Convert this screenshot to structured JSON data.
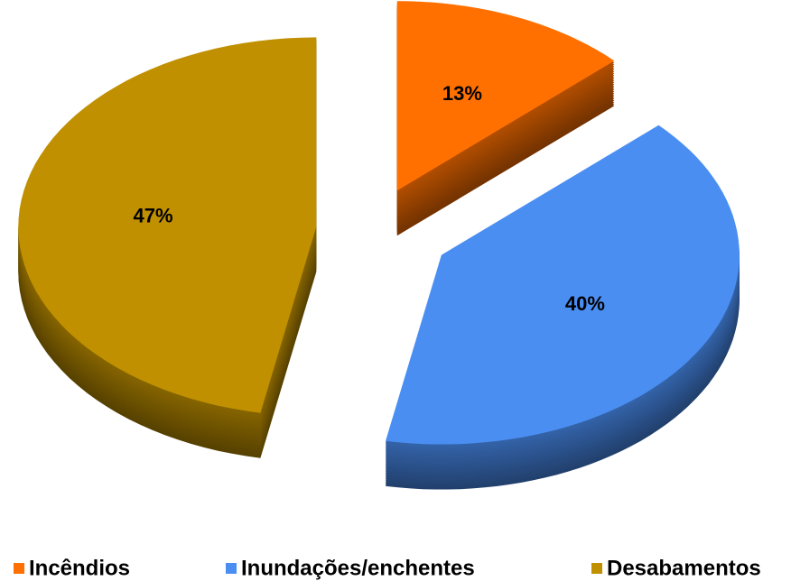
{
  "chart_data": {
    "type": "pie",
    "categories": [
      "Incêndios",
      "Inundações/enchentes",
      "Desabamentos"
    ],
    "values": [
      13,
      40,
      47
    ],
    "value_labels": [
      "13%",
      "40%",
      "47%"
    ],
    "colors": [
      "#ff7000",
      "#4a8ef2",
      "#c09000"
    ],
    "legend": "bottom"
  }
}
